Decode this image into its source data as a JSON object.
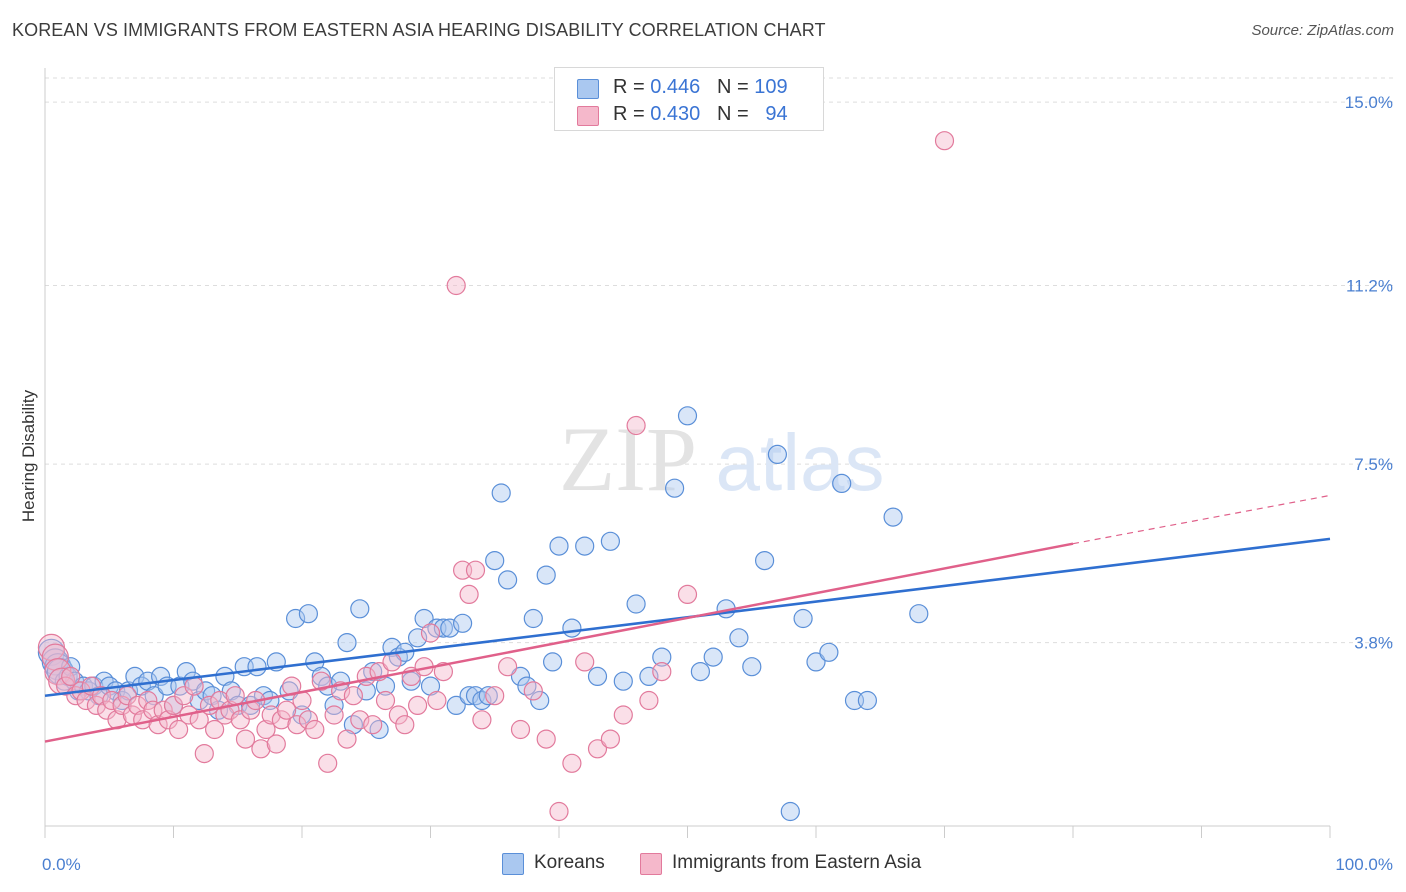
{
  "title": "KOREAN VS IMMIGRANTS FROM EASTERN ASIA HEARING DISABILITY CORRELATION CHART",
  "source": "Source: ZipAtlas.com",
  "watermark": {
    "zip": "ZIP",
    "atlas": "atlas"
  },
  "legend": {
    "r_label": "R =",
    "n_label": "N =",
    "rows": [
      {
        "r": "0.446",
        "n": "109"
      },
      {
        "r": "0.430",
        "n": "94"
      }
    ]
  },
  "bottom_legend": [
    "Koreans",
    "Immigrants from Eastern Asia"
  ],
  "chart_data": {
    "type": "scatter",
    "title": "KOREAN VS IMMIGRANTS FROM EASTERN ASIA HEARING DISABILITY CORRELATION CHART",
    "xlabel": "",
    "ylabel": "Hearing Disability",
    "xlim": [
      0,
      100
    ],
    "ylim": [
      0,
      15.5
    ],
    "x_tick_labels": [
      "0.0%",
      "100.0%"
    ],
    "y_ticks": [
      3.8,
      7.5,
      11.2,
      15.0
    ],
    "y_tick_labels": [
      "3.8%",
      "7.5%",
      "11.2%",
      "15.0%"
    ],
    "grid": true,
    "legend_position": "top-center",
    "colors": {
      "koreans_fill": "#aac8f0",
      "koreans_stroke": "#5a8fd8",
      "koreans_line": "#2f6fd0",
      "eastasia_fill": "#f5b8cb",
      "eastasia_stroke": "#e27a9c",
      "eastasia_line": "#e0608a",
      "tick": "#4a7fd0",
      "grid": "#dddddd"
    },
    "series": [
      {
        "name": "Koreans",
        "R": 0.446,
        "N": 109,
        "trend": {
          "x": [
            0,
            100
          ],
          "y": [
            2.7,
            5.95
          ]
        },
        "points": [
          [
            0.5,
            3.6
          ],
          [
            0.8,
            3.4
          ],
          [
            1.0,
            3.3
          ],
          [
            1.2,
            3.2
          ],
          [
            1.5,
            3.0
          ],
          [
            1.8,
            3.1
          ],
          [
            2.0,
            3.3
          ],
          [
            2.3,
            3.0
          ],
          [
            2.6,
            2.8
          ],
          [
            3.0,
            2.9
          ],
          [
            3.4,
            2.8
          ],
          [
            3.8,
            2.9
          ],
          [
            4.2,
            2.7
          ],
          [
            4.6,
            3.0
          ],
          [
            5.0,
            2.9
          ],
          [
            5.5,
            2.8
          ],
          [
            6.0,
            2.6
          ],
          [
            6.5,
            2.8
          ],
          [
            7.0,
            3.1
          ],
          [
            7.5,
            2.9
          ],
          [
            8.0,
            3.0
          ],
          [
            8.5,
            2.7
          ],
          [
            9.0,
            3.1
          ],
          [
            9.5,
            2.9
          ],
          [
            10.0,
            2.5
          ],
          [
            10.5,
            2.9
          ],
          [
            11.0,
            3.2
          ],
          [
            11.5,
            3.0
          ],
          [
            12.0,
            2.6
          ],
          [
            12.5,
            2.8
          ],
          [
            13.0,
            2.7
          ],
          [
            13.5,
            2.4
          ],
          [
            14.0,
            3.1
          ],
          [
            14.5,
            2.8
          ],
          [
            15.0,
            2.5
          ],
          [
            15.5,
            3.3
          ],
          [
            16.0,
            2.5
          ],
          [
            16.5,
            3.3
          ],
          [
            17.0,
            2.7
          ],
          [
            17.5,
            2.6
          ],
          [
            18.0,
            3.4
          ],
          [
            19.0,
            2.8
          ],
          [
            19.5,
            4.3
          ],
          [
            20.0,
            2.3
          ],
          [
            20.5,
            4.4
          ],
          [
            21.0,
            3.4
          ],
          [
            21.5,
            3.1
          ],
          [
            22.0,
            2.9
          ],
          [
            22.5,
            2.5
          ],
          [
            23.0,
            3.0
          ],
          [
            23.5,
            3.8
          ],
          [
            24.0,
            2.1
          ],
          [
            24.5,
            4.5
          ],
          [
            25.0,
            2.8
          ],
          [
            25.5,
            3.2
          ],
          [
            26.0,
            2.0
          ],
          [
            26.5,
            2.9
          ],
          [
            27.0,
            3.7
          ],
          [
            27.5,
            3.5
          ],
          [
            28.0,
            3.6
          ],
          [
            28.5,
            3.0
          ],
          [
            29.0,
            3.9
          ],
          [
            29.5,
            4.3
          ],
          [
            30.0,
            2.9
          ],
          [
            30.5,
            4.1
          ],
          [
            31.0,
            4.1
          ],
          [
            31.5,
            4.1
          ],
          [
            32.0,
            2.5
          ],
          [
            32.5,
            4.2
          ],
          [
            33.0,
            2.7
          ],
          [
            33.5,
            2.7
          ],
          [
            34.0,
            2.6
          ],
          [
            34.5,
            2.7
          ],
          [
            35.0,
            5.5
          ],
          [
            35.5,
            6.9
          ],
          [
            36.0,
            5.1
          ],
          [
            37.0,
            3.1
          ],
          [
            37.5,
            2.9
          ],
          [
            38.0,
            4.3
          ],
          [
            38.5,
            2.6
          ],
          [
            39.0,
            5.2
          ],
          [
            39.5,
            3.4
          ],
          [
            40.0,
            5.8
          ],
          [
            41.0,
            4.1
          ],
          [
            42.0,
            5.8
          ],
          [
            43.0,
            3.1
          ],
          [
            44.0,
            5.9
          ],
          [
            45.0,
            3.0
          ],
          [
            46.0,
            4.6
          ],
          [
            47.0,
            3.1
          ],
          [
            48.0,
            3.5
          ],
          [
            49.0,
            7.0
          ],
          [
            50.0,
            8.5
          ],
          [
            51.0,
            3.2
          ],
          [
            52.0,
            3.5
          ],
          [
            53.0,
            4.5
          ],
          [
            54.0,
            3.9
          ],
          [
            55.0,
            3.3
          ],
          [
            56.0,
            5.5
          ],
          [
            57.0,
            7.7
          ],
          [
            58.0,
            0.3
          ],
          [
            59.0,
            4.3
          ],
          [
            60.0,
            3.4
          ],
          [
            61.0,
            3.6
          ],
          [
            62.0,
            7.1
          ],
          [
            63.0,
            2.6
          ],
          [
            64.0,
            2.6
          ],
          [
            66.0,
            6.4
          ],
          [
            68.0,
            4.4
          ]
        ]
      },
      {
        "name": "Immigrants from Eastern Asia",
        "R": 0.43,
        "N": 94,
        "trend": {
          "x": [
            0,
            80
          ],
          "y": [
            1.75,
            5.85
          ]
        },
        "trend_extension": {
          "x": [
            80,
            100
          ],
          "y": [
            5.85,
            6.85
          ]
        },
        "points": [
          [
            0.5,
            3.7
          ],
          [
            0.8,
            3.5
          ],
          [
            1.0,
            3.2
          ],
          [
            1.3,
            3.0
          ],
          [
            1.6,
            2.9
          ],
          [
            2.0,
            3.1
          ],
          [
            2.4,
            2.7
          ],
          [
            2.8,
            2.8
          ],
          [
            3.2,
            2.6
          ],
          [
            3.6,
            2.9
          ],
          [
            4.0,
            2.5
          ],
          [
            4.4,
            2.7
          ],
          [
            4.8,
            2.4
          ],
          [
            5.2,
            2.6
          ],
          [
            5.6,
            2.2
          ],
          [
            6.0,
            2.5
          ],
          [
            6.4,
            2.7
          ],
          [
            6.8,
            2.3
          ],
          [
            7.2,
            2.5
          ],
          [
            7.6,
            2.2
          ],
          [
            8.0,
            2.6
          ],
          [
            8.4,
            2.4
          ],
          [
            8.8,
            2.1
          ],
          [
            9.2,
            2.4
          ],
          [
            9.6,
            2.2
          ],
          [
            10.0,
            2.5
          ],
          [
            10.4,
            2.0
          ],
          [
            10.8,
            2.7
          ],
          [
            11.2,
            2.3
          ],
          [
            11.6,
            2.9
          ],
          [
            12.0,
            2.2
          ],
          [
            12.4,
            1.5
          ],
          [
            12.8,
            2.5
          ],
          [
            13.2,
            2.0
          ],
          [
            13.6,
            2.6
          ],
          [
            14.0,
            2.3
          ],
          [
            14.4,
            2.4
          ],
          [
            14.8,
            2.7
          ],
          [
            15.2,
            2.2
          ],
          [
            15.6,
            1.8
          ],
          [
            16.0,
            2.4
          ],
          [
            16.4,
            2.6
          ],
          [
            16.8,
            1.6
          ],
          [
            17.2,
            2.0
          ],
          [
            17.6,
            2.3
          ],
          [
            18.0,
            1.7
          ],
          [
            18.4,
            2.2
          ],
          [
            18.8,
            2.4
          ],
          [
            19.2,
            2.9
          ],
          [
            19.6,
            2.1
          ],
          [
            20.0,
            2.6
          ],
          [
            20.5,
            2.2
          ],
          [
            21.0,
            2.0
          ],
          [
            21.5,
            3.0
          ],
          [
            22.0,
            1.3
          ],
          [
            22.5,
            2.3
          ],
          [
            23.0,
            2.8
          ],
          [
            23.5,
            1.8
          ],
          [
            24.0,
            2.7
          ],
          [
            24.5,
            2.2
          ],
          [
            25.0,
            3.1
          ],
          [
            25.5,
            2.1
          ],
          [
            26.0,
            3.2
          ],
          [
            26.5,
            2.6
          ],
          [
            27.0,
            3.4
          ],
          [
            27.5,
            2.3
          ],
          [
            28.0,
            2.1
          ],
          [
            28.5,
            3.1
          ],
          [
            29.0,
            2.5
          ],
          [
            29.5,
            3.3
          ],
          [
            30.0,
            4.0
          ],
          [
            30.5,
            2.6
          ],
          [
            31.0,
            3.2
          ],
          [
            32.0,
            11.2
          ],
          [
            32.5,
            5.3
          ],
          [
            33.0,
            4.8
          ],
          [
            33.5,
            5.3
          ],
          [
            34.0,
            2.2
          ],
          [
            35.0,
            2.7
          ],
          [
            36.0,
            3.3
          ],
          [
            37.0,
            2.0
          ],
          [
            38.0,
            2.8
          ],
          [
            39.0,
            1.8
          ],
          [
            40.0,
            0.3
          ],
          [
            41.0,
            1.3
          ],
          [
            42.0,
            3.4
          ],
          [
            43.0,
            1.6
          ],
          [
            44.0,
            1.8
          ],
          [
            45.0,
            2.3
          ],
          [
            46.0,
            8.3
          ],
          [
            47.0,
            2.6
          ],
          [
            48.0,
            3.2
          ],
          [
            50.0,
            4.8
          ],
          [
            70.0,
            14.2
          ]
        ]
      }
    ]
  }
}
